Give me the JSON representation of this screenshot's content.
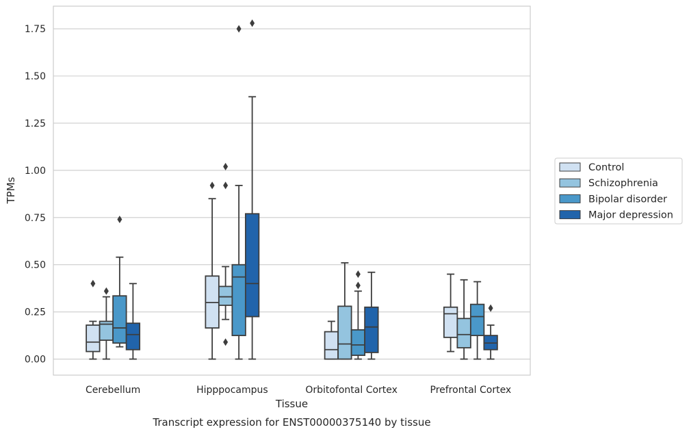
{
  "chart_data": {
    "type": "boxplot",
    "title": "",
    "xlabel": "Tissue",
    "ylabel": "TPMs",
    "caption": "Transcript expression for ENST00000375140 by tissue",
    "ylim": [
      -0.085,
      1.87
    ],
    "yticks": [
      0.0,
      0.25,
      0.5,
      0.75,
      1.0,
      1.25,
      1.5,
      1.75
    ],
    "ytick_labels": [
      "0.00",
      "0.25",
      "0.50",
      "0.75",
      "1.00",
      "1.25",
      "1.50",
      "1.75"
    ],
    "grid": "horizontal",
    "legend_position": "outside-right",
    "categories": [
      "Cerebellum",
      "Hipppocampus",
      "Orbitofontal Cortex",
      "Prefrontal Cortex"
    ],
    "series": [
      {
        "name": "Control",
        "color": "#d0e1f2",
        "boxes": [
          {
            "whislo": 0.0,
            "q1": 0.04,
            "med": 0.09,
            "q3": 0.18,
            "whishi": 0.2,
            "fliers": [
              0.4
            ]
          },
          {
            "whislo": 0.0,
            "q1": 0.165,
            "med": 0.3,
            "q3": 0.44,
            "whishi": 0.85,
            "fliers": [
              0.92
            ]
          },
          {
            "whislo": 0.0,
            "q1": 0.0,
            "med": 0.05,
            "q3": 0.145,
            "whishi": 0.2,
            "fliers": []
          },
          {
            "whislo": 0.04,
            "q1": 0.115,
            "med": 0.24,
            "q3": 0.275,
            "whishi": 0.45,
            "fliers": []
          }
        ]
      },
      {
        "name": "Schizophrenia",
        "color": "#94c4df",
        "boxes": [
          {
            "whislo": 0.0,
            "q1": 0.1,
            "med": 0.185,
            "q3": 0.2,
            "whishi": 0.33,
            "fliers": [
              0.36
            ]
          },
          {
            "whislo": 0.21,
            "q1": 0.285,
            "med": 0.33,
            "q3": 0.385,
            "whishi": 0.49,
            "fliers": [
              0.92,
              1.02,
              0.09
            ]
          },
          {
            "whislo": 0.0,
            "q1": 0.0,
            "med": 0.08,
            "q3": 0.28,
            "whishi": 0.51,
            "fliers": []
          },
          {
            "whislo": 0.0,
            "q1": 0.06,
            "med": 0.13,
            "q3": 0.215,
            "whishi": 0.42,
            "fliers": []
          }
        ]
      },
      {
        "name": "Bipolar disorder",
        "color": "#4a98c9",
        "boxes": [
          {
            "whislo": 0.065,
            "q1": 0.085,
            "med": 0.165,
            "q3": 0.335,
            "whishi": 0.54,
            "fliers": [
              0.74
            ]
          },
          {
            "whislo": 0.0,
            "q1": 0.125,
            "med": 0.435,
            "q3": 0.5,
            "whishi": 0.92,
            "fliers": [
              1.75
            ]
          },
          {
            "whislo": 0.0,
            "q1": 0.02,
            "med": 0.075,
            "q3": 0.155,
            "whishi": 0.36,
            "fliers": [
              0.39,
              0.45
            ]
          },
          {
            "whislo": 0.0,
            "q1": 0.125,
            "med": 0.225,
            "q3": 0.29,
            "whishi": 0.41,
            "fliers": []
          }
        ]
      },
      {
        "name": "Major depression",
        "color": "#2164ab",
        "boxes": [
          {
            "whislo": 0.0,
            "q1": 0.05,
            "med": 0.13,
            "q3": 0.19,
            "whishi": 0.4,
            "fliers": []
          },
          {
            "whislo": 0.0,
            "q1": 0.225,
            "med": 0.4,
            "q3": 0.77,
            "whishi": 1.39,
            "fliers": [
              1.78
            ]
          },
          {
            "whislo": 0.0,
            "q1": 0.035,
            "med": 0.17,
            "q3": 0.275,
            "whishi": 0.46,
            "fliers": []
          },
          {
            "whislo": 0.0,
            "q1": 0.05,
            "med": 0.085,
            "q3": 0.125,
            "whishi": 0.18,
            "fliers": [
              0.27
            ]
          }
        ]
      }
    ]
  },
  "colors": {
    "grid": "#cccccc",
    "frame": "#cccccc",
    "line": "#3d3d3d",
    "text": "#262626"
  }
}
